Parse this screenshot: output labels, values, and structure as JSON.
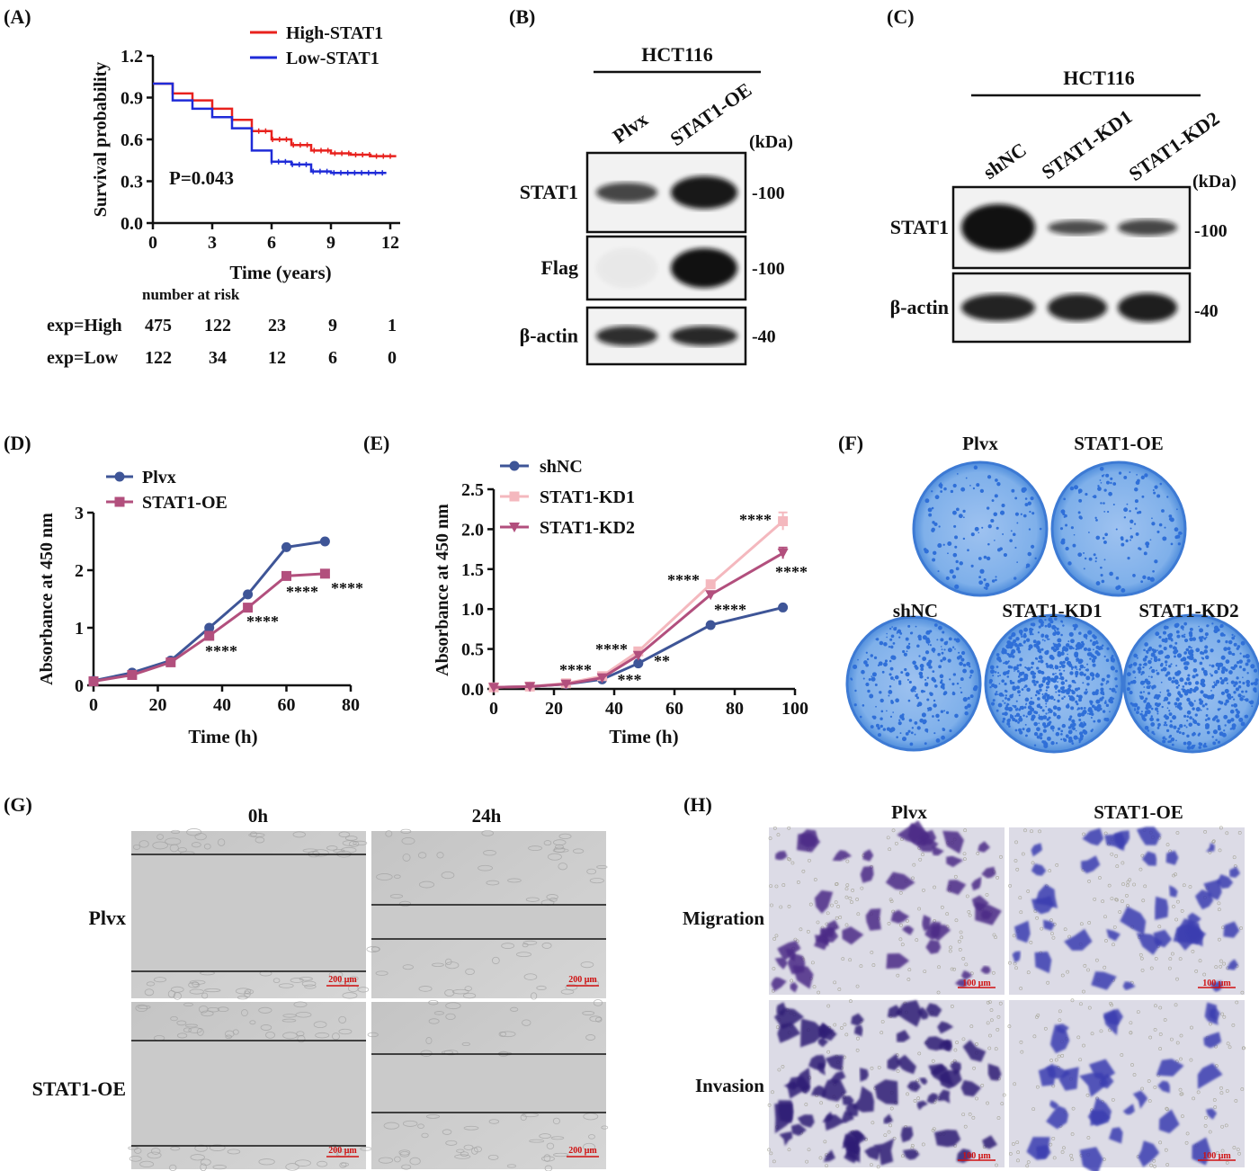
{
  "labels": {
    "A": "(A)",
    "B": "(B)",
    "C": "(C)",
    "D": "(D)",
    "E": "(E)",
    "F": "(F)",
    "G": "(G)",
    "H": "(H)"
  },
  "colors": {
    "high": "#e8211d",
    "low": "#1f2bd8",
    "plvx": "#3e5597",
    "oe": "#b24f7d",
    "kd1": "#f4b8be",
    "kd2": "#b24f7d",
    "colony": "#2f6fd8"
  },
  "chart_data": [
    {
      "id": "A",
      "type": "line",
      "xlabel": "Time (years)",
      "ylabel": "Survival probability",
      "xlim": [
        0,
        12.5
      ],
      "ylim": [
        0,
        1.2
      ],
      "xticks": [
        "0",
        "3",
        "6",
        "9",
        "12"
      ],
      "yticks": [
        "0.0",
        "0.3",
        "0.6",
        "0.9",
        "1.2"
      ],
      "annotation": "P=0.043",
      "series": [
        {
          "name": "High-STAT1",
          "x": [
            0,
            1,
            2,
            3,
            4,
            5,
            6,
            7,
            8,
            9,
            10,
            11,
            12.3
          ],
          "y": [
            1.0,
            0.93,
            0.88,
            0.82,
            0.74,
            0.66,
            0.6,
            0.56,
            0.52,
            0.5,
            0.49,
            0.48,
            0.48
          ]
        },
        {
          "name": "Low-STAT1",
          "x": [
            0,
            1,
            2,
            3,
            4,
            5,
            6,
            7,
            8,
            9,
            10,
            11,
            11.8
          ],
          "y": [
            1.0,
            0.88,
            0.82,
            0.76,
            0.68,
            0.52,
            0.44,
            0.42,
            0.37,
            0.36,
            0.36,
            0.36,
            0.36
          ]
        }
      ],
      "risk_table": {
        "title": "number at risk",
        "rows": [
          {
            "label": "exp=High",
            "values": [
              "475",
              "122",
              "23",
              "9",
              "1"
            ]
          },
          {
            "label": "exp=Low",
            "values": [
              "122",
              "34",
              "12",
              "6",
              "0"
            ]
          }
        ]
      }
    },
    {
      "id": "D",
      "type": "line",
      "xlabel": "Time (h)",
      "ylabel": "Absorbance at 450 nm",
      "xlim": [
        0,
        80
      ],
      "ylim": [
        0,
        3
      ],
      "xticks": [
        "0",
        "20",
        "40",
        "60",
        "80"
      ],
      "yticks": [
        "0",
        "1",
        "2",
        "3"
      ],
      "x": [
        0,
        12,
        24,
        36,
        48,
        60,
        72
      ],
      "series": [
        {
          "name": "Plvx",
          "values": [
            0.08,
            0.22,
            0.43,
            1.0,
            1.58,
            2.4,
            2.5
          ]
        },
        {
          "name": "STAT1-OE",
          "values": [
            0.07,
            0.18,
            0.4,
            0.86,
            1.35,
            1.9,
            1.94
          ]
        }
      ],
      "annotations": [
        "****",
        "****",
        "****",
        "****"
      ]
    },
    {
      "id": "E",
      "type": "line",
      "xlabel": "Time (h)",
      "ylabel": "Absorbance at 450 nm",
      "xlim": [
        0,
        100
      ],
      "ylim": [
        0,
        2.5
      ],
      "xticks": [
        "0",
        "20",
        "40",
        "60",
        "80",
        "100"
      ],
      "yticks": [
        "0.0",
        "0.5",
        "1.0",
        "1.5",
        "2.0",
        "2.5"
      ],
      "x": [
        0,
        12,
        24,
        36,
        48,
        72,
        96
      ],
      "series": [
        {
          "name": "shNC",
          "values": [
            0.02,
            0.03,
            0.06,
            0.12,
            0.32,
            0.8,
            1.02
          ]
        },
        {
          "name": "STAT1-KD1",
          "values": [
            0.02,
            0.03,
            0.07,
            0.16,
            0.47,
            1.31,
            2.1
          ]
        },
        {
          "name": "STAT1-KD2",
          "values": [
            0.02,
            0.03,
            0.06,
            0.14,
            0.42,
            1.18,
            1.7
          ]
        }
      ],
      "annotations": [
        "****",
        "****",
        "***",
        "**",
        "****",
        "****",
        "****",
        "****"
      ]
    }
  ],
  "blotB": {
    "cell": "HCT116",
    "lanes": [
      "Plvx",
      "STAT1-OE"
    ],
    "unit": "(kDa)",
    "rows": [
      "STAT1",
      "Flag",
      "β-actin"
    ],
    "markers": [
      "-100",
      "-100",
      "-40"
    ]
  },
  "blotC": {
    "cell": "HCT116",
    "lanes": [
      "shNC",
      "STAT1-KD1",
      "STAT1-KD2"
    ],
    "unit": "(kDa)",
    "rows": [
      "STAT1",
      "β-actin"
    ],
    "markers": [
      "-100",
      "-40"
    ]
  },
  "colonies": {
    "top": [
      "Plvx",
      "STAT1-OE"
    ],
    "bottom": [
      "shNC",
      "STAT1-KD1",
      "STAT1-KD2"
    ]
  },
  "wound": {
    "cols": [
      "0h",
      "24h"
    ],
    "rows": [
      "Plvx",
      "STAT1-OE"
    ],
    "scale": "200 μm"
  },
  "transwell": {
    "cols": [
      "Plvx",
      "STAT1-OE"
    ],
    "rows": [
      "Migration",
      "Invasion"
    ],
    "scale": "100 μm"
  }
}
